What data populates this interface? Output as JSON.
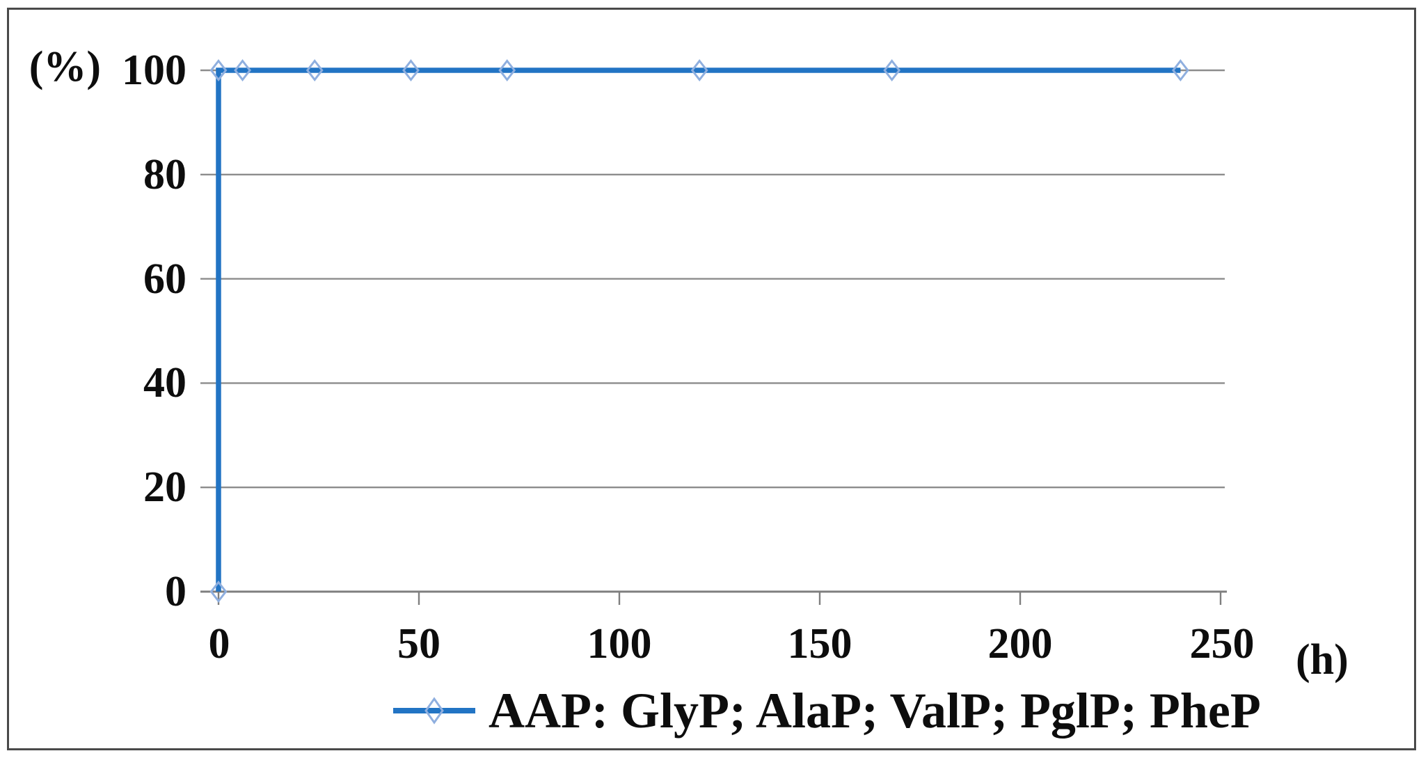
{
  "figure": {
    "y_axis_unit_label": "(%)",
    "x_axis_unit_label": "(h)"
  },
  "legend": {
    "label": "AAP: GlyP; AlaP; ValP; PglP; PheP",
    "marker": "open-diamond-on-line",
    "position": "bottom-center"
  },
  "chart_data": {
    "type": "line",
    "title": "",
    "xlabel": "(h)",
    "ylabel": "(%)",
    "xlim": [
      -5,
      252
    ],
    "ylim": [
      0,
      100
    ],
    "grid": "horizontal-only",
    "legend_position": "bottom",
    "x_tick_labels": [
      "0",
      "50",
      "100",
      "150",
      "200",
      "250"
    ],
    "x_ticks": [
      0,
      50,
      100,
      150,
      200,
      250
    ],
    "y_tick_labels": [
      "100",
      "80",
      "60",
      "40",
      "20",
      "0"
    ],
    "y_ticks": [
      100,
      80,
      60,
      40,
      20,
      0
    ],
    "series": [
      {
        "name": "AAP: GlyP; AlaP; ValP; PglP; PheP",
        "marker": "open-diamond",
        "points": [
          {
            "x": 0,
            "y": 0
          },
          {
            "x": 0,
            "y": 100
          },
          {
            "x": 6,
            "y": 100
          },
          {
            "x": 24,
            "y": 100
          },
          {
            "x": 48,
            "y": 100
          },
          {
            "x": 72,
            "y": 100
          },
          {
            "x": 120,
            "y": 100
          },
          {
            "x": 168,
            "y": 100
          },
          {
            "x": 240,
            "y": 100
          }
        ]
      }
    ],
    "colors": {
      "line": "#2274c4",
      "marker_stroke": "#8fafdf",
      "gridline": "#8c8c8c",
      "axis": "#7f7f7f",
      "text": "#0d0d0d",
      "border": "#4a4a4a"
    }
  }
}
